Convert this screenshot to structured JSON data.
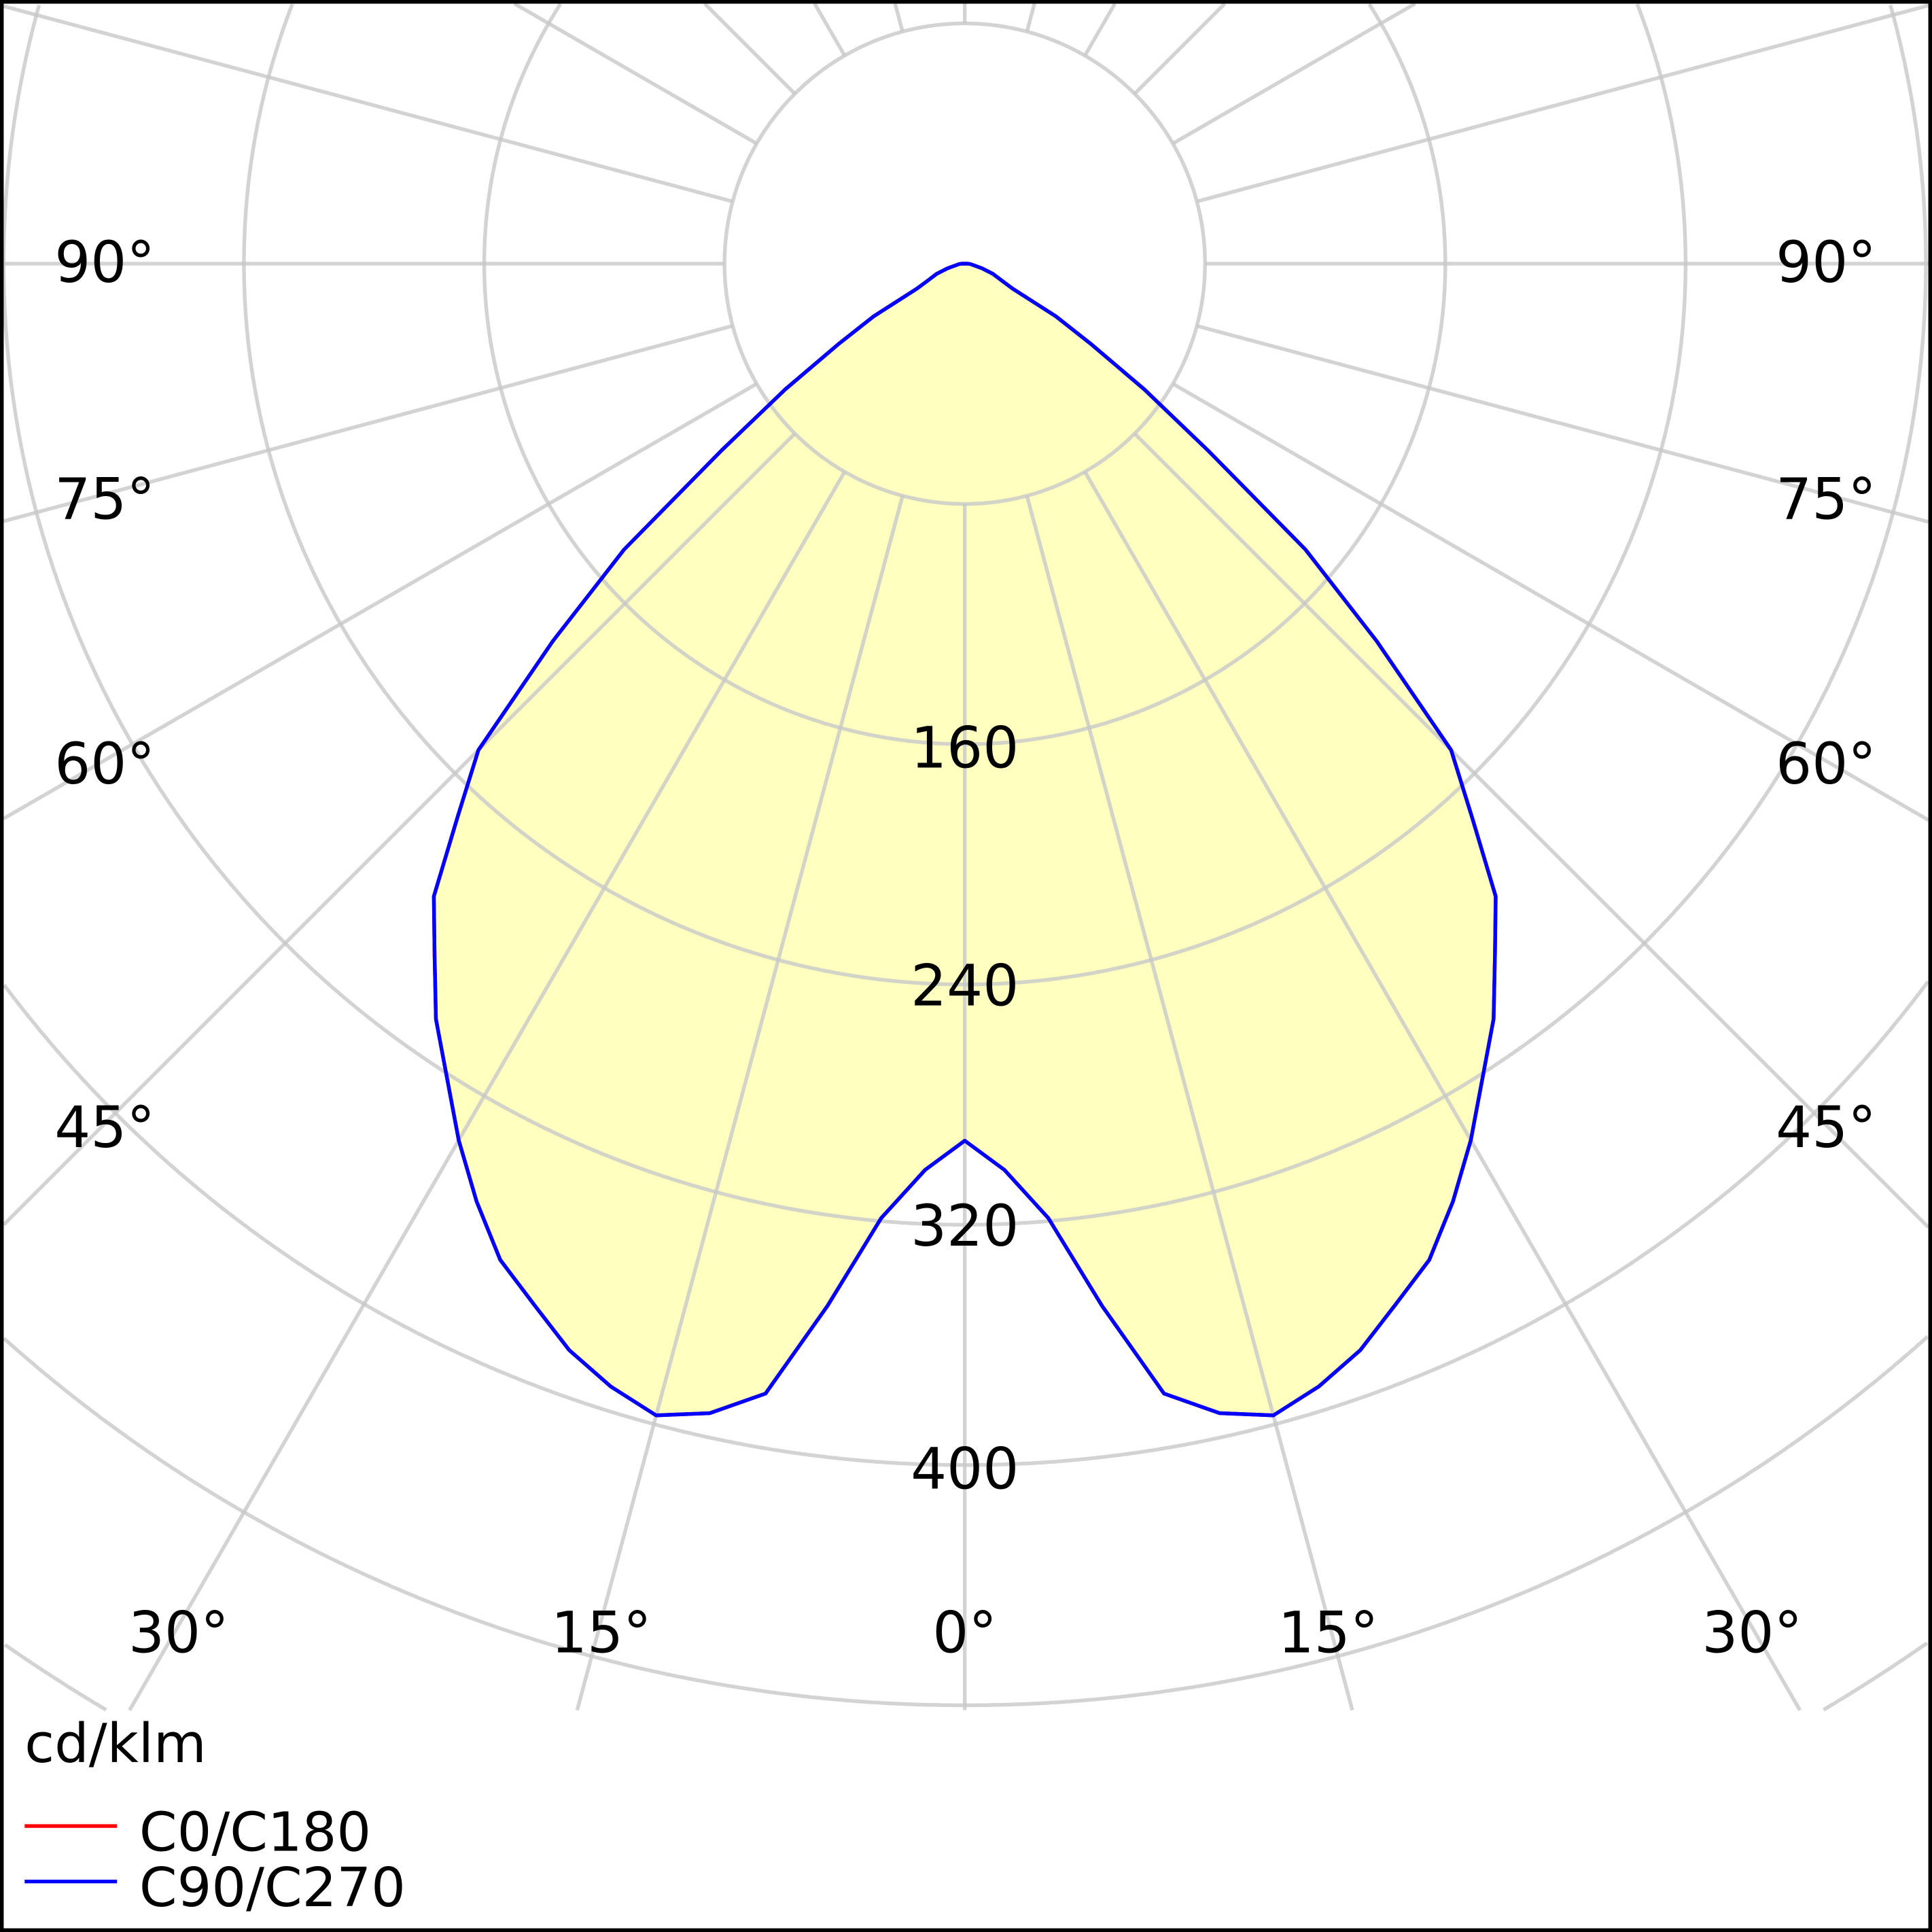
{
  "chart_data": {
    "type": "polar",
    "unit_label": "cd/klm",
    "radial_ticks": [
      160,
      240,
      320,
      400
    ],
    "grid_rings": [
      80,
      160,
      240,
      320,
      400,
      480,
      560,
      640,
      720
    ],
    "angle_step_deg": 15,
    "angle_labels": {
      "side": [
        "90°",
        "75°",
        "60°",
        "45°"
      ],
      "bottom": [
        "30°",
        "15°",
        "0°",
        "15°",
        "30°"
      ]
    },
    "grid": true,
    "legend_placement": "bottom-left",
    "fill_color": "#ffffc0",
    "series": [
      {
        "name": "C0/C180",
        "color": "#ff0000",
        "gamma": [
          0,
          2.5,
          5,
          7.5,
          10,
          12.5,
          15,
          17.5,
          20,
          22.5,
          25,
          27.5,
          30,
          32.5,
          35,
          37.5,
          40,
          42.5,
          45,
          47.5,
          50,
          52.5,
          55,
          57.5,
          60,
          62.5,
          65,
          70,
          75,
          80,
          85,
          90
        ],
        "values": [
          292,
          302,
          319,
          350,
          382,
          392,
          397,
          392,
          385,
          375,
          366,
          352,
          337,
          321,
          307,
          290,
          275,
          250,
          229,
          186,
          148,
          102,
          73,
          50,
          35,
          18,
          14,
          10,
          6,
          3,
          2,
          1
        ]
      },
      {
        "name": "C90/C270",
        "color": "#0000ff",
        "gamma": [
          0,
          2.5,
          5,
          7.5,
          10,
          12.5,
          15,
          17.5,
          20,
          22.5,
          25,
          27.5,
          30,
          32.5,
          35,
          37.5,
          40,
          42.5,
          45,
          47.5,
          50,
          52.5,
          55,
          57.5,
          60,
          62.5,
          65,
          70,
          75,
          80,
          85,
          90
        ],
        "values": [
          292,
          302,
          319,
          350,
          382,
          392,
          397,
          392,
          385,
          375,
          366,
          352,
          337,
          321,
          307,
          290,
          275,
          250,
          229,
          186,
          148,
          102,
          73,
          50,
          35,
          18,
          14,
          10,
          6,
          3,
          2,
          1
        ]
      }
    ]
  }
}
